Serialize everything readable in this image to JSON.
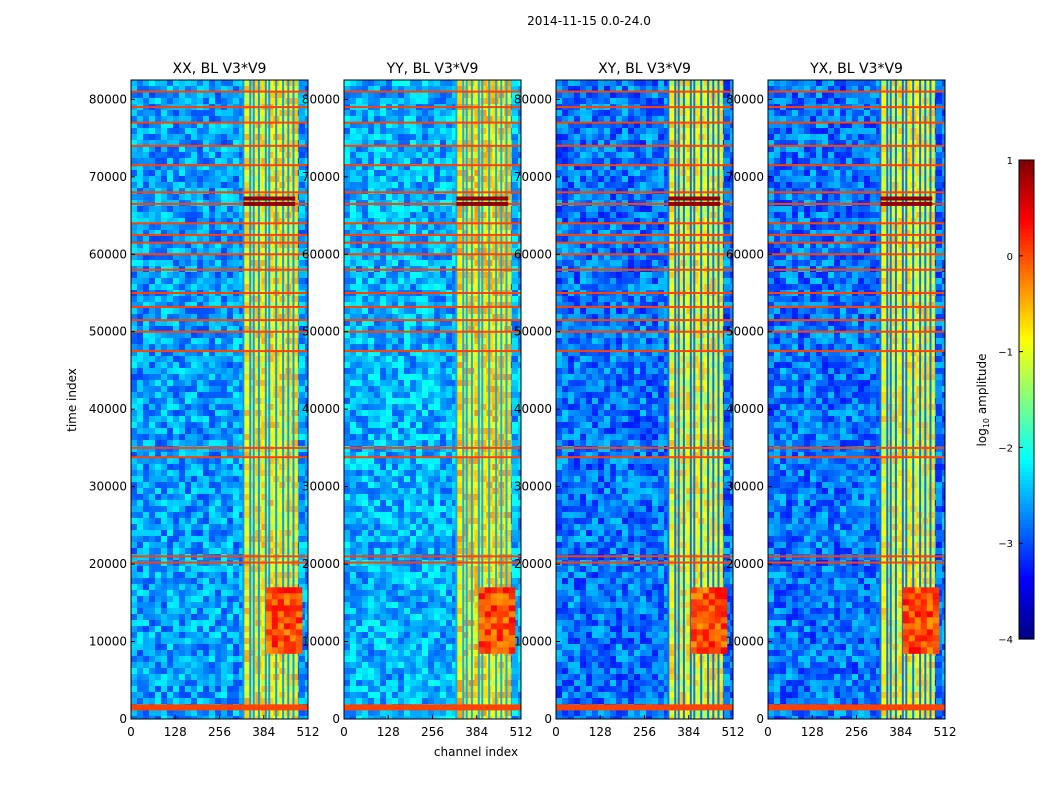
{
  "suptitle": "2014-11-15 0.0-24.0",
  "chart_data": {
    "type": "heatmap",
    "title": "2014-11-15 0.0-24.0",
    "xlabel": "channel index",
    "ylabel": "time index",
    "xlim": [
      0,
      512
    ],
    "ylim": [
      0,
      82500
    ],
    "x_ticks": [
      0,
      128,
      256,
      384,
      512
    ],
    "y_ticks": [
      0,
      10000,
      20000,
      30000,
      40000,
      50000,
      60000,
      70000,
      80000
    ],
    "panels": [
      {
        "title": "XX, BL V3*V9",
        "base_level": -2.6,
        "band_level": -0.9
      },
      {
        "title": "YY, BL V3*V9",
        "base_level": -2.5,
        "band_level": -0.8
      },
      {
        "title": "XY, BL V3*V9",
        "base_level": -2.8,
        "band_level": -1.0
      },
      {
        "title": "YX, BL V3*V9",
        "base_level": -2.8,
        "band_level": -1.0
      }
    ],
    "colorbar": {
      "label_main": "log",
      "label_sub": "10",
      "label_rest": " amplitude",
      "range": [
        -4,
        1
      ],
      "ticks": [
        1,
        0,
        -1,
        -2,
        -3,
        -4
      ],
      "tick_labels": [
        "1",
        "0",
        "−1",
        "−2",
        "−3",
        "−4"
      ],
      "colormap": "jet"
    },
    "bright_channel_band": [
      325,
      475
    ],
    "bright_channel_lines": [
      325,
      345,
      355,
      370,
      390,
      400,
      420,
      440,
      455,
      470
    ],
    "flagged_time_rows": [
      1500,
      20200,
      21000,
      33800,
      35000,
      47500,
      50000,
      51500,
      53200,
      55000,
      58000,
      60000,
      61500,
      62500,
      64000,
      66500,
      68000,
      71500,
      74000,
      77000,
      79000,
      81000
    ],
    "hot_time_rows": [
      66500,
      67200
    ],
    "hot_region": {
      "channels": [
        390,
        480
      ],
      "time": [
        9000,
        17000
      ]
    }
  }
}
